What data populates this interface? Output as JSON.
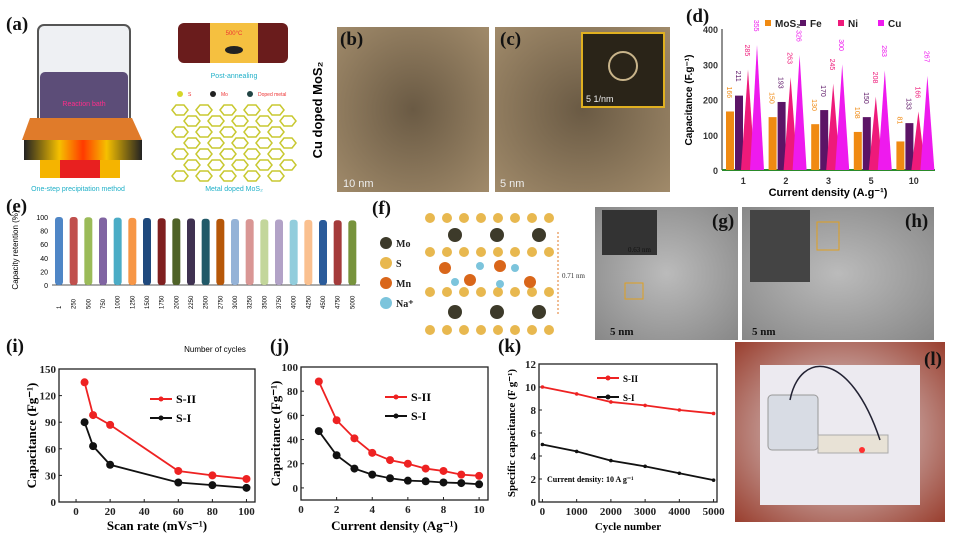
{
  "panel_labels": {
    "a": "(a)",
    "b": "(b)",
    "c": "(c)",
    "d": "(d)",
    "e": "(e)",
    "f": "(f)",
    "g": "(g)",
    "h": "(h)",
    "i": "(i)",
    "j": "(j)",
    "k": "(k)",
    "l": "(l)"
  },
  "panel_a": {
    "reaction_bath": "Reaction bath",
    "temperature": "500°C",
    "post_annealing": "Post-annealing",
    "legend": [
      "S",
      "Mo",
      "Doped metal"
    ],
    "method": "One-step precipitation method",
    "product": "Metal doped MoS₂"
  },
  "panel_b": {
    "side_label": "Cu doped MoS₂",
    "scale_bar": "10 nm"
  },
  "panel_c": {
    "scale_bar": "5 nm",
    "fft_scale": "5 1/nm"
  },
  "panel_f": {
    "legend": [
      "Mo",
      "S",
      "Mn",
      "Na⁺"
    ],
    "spacing": "0.71 nm",
    "colors": [
      "#3d3a2a",
      "#e8b84f",
      "#d9661a",
      "#7cc4dc"
    ]
  },
  "panel_g": {
    "spacing": "0.63 nm",
    "scale_bar": "5 nm"
  },
  "panel_h": {
    "scale_bar": "5 nm"
  },
  "chart_data": [
    {
      "panel": "d",
      "type": "bar",
      "categories": [
        "1",
        "2",
        "3",
        "5",
        "10"
      ],
      "series": [
        {
          "name": "MoS₂",
          "color": "#f08a12",
          "values": [
            166,
            150,
            130,
            108,
            81
          ]
        },
        {
          "name": "Fe",
          "color": "#5c1466",
          "values": [
            211,
            193,
            170,
            150,
            133
          ]
        },
        {
          "name": "Ni",
          "color": "#ee1a7a",
          "values": [
            285,
            263,
            245,
            208,
            166
          ]
        },
        {
          "name": "Cu",
          "color": "#ee1aee",
          "values": [
            355,
            326,
            300,
            283,
            267
          ]
        }
      ],
      "xlabel": "Current density (A.g⁻¹)",
      "ylabel": "Capacitance (F.g⁻¹)",
      "ylim": [
        0,
        400
      ],
      "yticks": [
        "0",
        "100",
        "200",
        "300",
        "400"
      ],
      "legend": "top",
      "grid": false
    },
    {
      "panel": "e",
      "type": "bar",
      "categories": [
        "1",
        "250",
        "500",
        "750",
        "1000",
        "1250",
        "1500",
        "1750",
        "2000",
        "2250",
        "2500",
        "2750",
        "3000",
        "3250",
        "3500",
        "3750",
        "4000",
        "4250",
        "4500",
        "4750",
        "5000"
      ],
      "values": [
        100,
        100,
        99.6,
        99.3,
        99,
        98.8,
        98.5,
        98.2,
        98,
        97.8,
        97.5,
        97.3,
        97,
        96.8,
        96.5,
        96.3,
        96,
        95.8,
        95.5,
        95.3,
        95
      ],
      "colors": [
        "#4f86c6",
        "#c0504d",
        "#9bbb59",
        "#8064a2",
        "#4bacc6",
        "#f79646",
        "#1f497d",
        "#7f1f1f",
        "#4f6228",
        "#3f3151",
        "#215968",
        "#b65708",
        "#95b3d7",
        "#d99694",
        "#c3d69b",
        "#b2a2c7",
        "#92cddc",
        "#fac08f",
        "#2a5b9a",
        "#a43b3b",
        "#77933c"
      ],
      "xlabel": "Number of cycles",
      "ylabel": "Capacity retention (%)",
      "ylim": [
        0,
        100
      ],
      "yticks": [
        "0",
        "20",
        "40",
        "60",
        "80",
        "100"
      ],
      "grid": false
    },
    {
      "panel": "i",
      "type": "line",
      "x": [
        5,
        10,
        20,
        60,
        80,
        100
      ],
      "series": [
        {
          "name": "S-II",
          "color": "#ee2222",
          "values": [
            135,
            98,
            87,
            35,
            30,
            26
          ]
        },
        {
          "name": "S-I",
          "color": "#111111",
          "values": [
            90,
            63,
            42,
            22,
            19,
            16
          ]
        }
      ],
      "xlabel": "Scan rate (mVs⁻¹)",
      "ylabel": "Capacitance (Fg⁻¹)",
      "xlim": [
        -10,
        105
      ],
      "ylim": [
        0,
        150
      ],
      "xticks": [
        "0",
        "20",
        "40",
        "60",
        "80",
        "100"
      ],
      "yticks": [
        "0",
        "30",
        "60",
        "90",
        "120",
        "150"
      ],
      "legend": "right"
    },
    {
      "panel": "j",
      "type": "line",
      "x": [
        1,
        2,
        3,
        4,
        5,
        6,
        7,
        8,
        9,
        10
      ],
      "series": [
        {
          "name": "S-II",
          "color": "#ee2222",
          "values": [
            88,
            56,
            41,
            29,
            23,
            20,
            16,
            14,
            11,
            10
          ]
        },
        {
          "name": "S-I",
          "color": "#111111",
          "values": [
            47,
            27,
            16,
            11,
            8,
            6,
            5.5,
            4.5,
            4,
            3
          ]
        }
      ],
      "xlabel": "Current density (Ag⁻¹)",
      "ylabel": "Capacitance (Fg⁻¹)",
      "xlim": [
        0,
        10.5
      ],
      "ylim": [
        -10,
        100
      ],
      "xticks": [
        "0",
        "2",
        "4",
        "6",
        "8",
        "10"
      ],
      "yticks": [
        "0",
        "20",
        "40",
        "60",
        "80",
        "100"
      ],
      "legend": "right"
    },
    {
      "panel": "k",
      "type": "line",
      "x": [
        0,
        1000,
        2000,
        3000,
        4000,
        5000
      ],
      "series": [
        {
          "name": "S-II",
          "color": "#ee2222",
          "values": [
            10,
            9.4,
            8.7,
            8.4,
            8.0,
            7.7
          ]
        },
        {
          "name": "S-I",
          "color": "#111111",
          "values": [
            5,
            4.4,
            3.6,
            3.1,
            2.5,
            1.9
          ]
        }
      ],
      "xlabel": "Cycle number",
      "ylabel": "Specific capacitance (F g⁻¹)",
      "xlim": [
        -100,
        5100
      ],
      "ylim": [
        0,
        12
      ],
      "xticks": [
        "0",
        "1000",
        "2000",
        "3000",
        "4000",
        "5000"
      ],
      "yticks": [
        "0",
        "2",
        "4",
        "6",
        "8",
        "10",
        "12"
      ],
      "annotation": "Current density: 10 A g⁻¹",
      "legend": "top"
    }
  ]
}
